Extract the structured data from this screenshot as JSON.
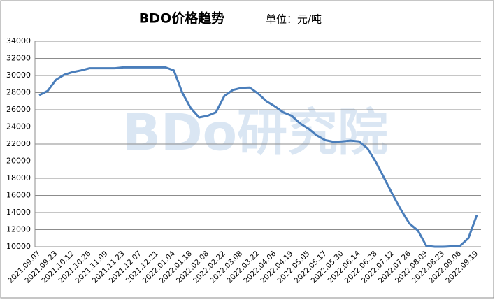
{
  "chart_data": {
    "type": "line",
    "title": "BDO价格趋势",
    "subtitle": "单位：元/吨",
    "watermark": "BDo研究院",
    "categories": [
      "2021.09.07",
      null,
      "2021.09.23",
      null,
      "2021.10.12",
      null,
      "2021.10.26",
      null,
      "2021.11.09",
      null,
      "2021.11.23",
      null,
      "2021.12.07",
      null,
      "2021.12.21",
      null,
      "2022.01.04",
      null,
      "2022.01.18",
      null,
      "2022.02.08",
      null,
      "2022.02.22",
      null,
      "2022.03.08",
      null,
      "2022.03.22",
      null,
      "2022.04.06",
      null,
      "2022.04.19",
      null,
      "2022.05.05",
      null,
      "2022.05.17",
      null,
      "2022.05.30",
      null,
      "2022.06.14",
      null,
      "2022.06.28",
      null,
      "2022.07.12",
      null,
      "2022.07.26",
      null,
      "2022.08.09",
      null,
      "2022.08.23",
      null,
      "2022.09.06",
      null,
      "2022.09.19"
    ],
    "series": [
      {
        "color": "#4a7ebb",
        "values": [
          27700,
          28200,
          29500,
          30100,
          30400,
          30600,
          30850,
          30850,
          30850,
          30850,
          30950,
          30950,
          30950,
          30950,
          30950,
          30950,
          30600,
          28000,
          26200,
          25100,
          25300,
          25700,
          27600,
          28300,
          28550,
          28600,
          27900,
          27000,
          26400,
          25700,
          25300,
          24400,
          23800,
          23000,
          22450,
          22250,
          22300,
          22400,
          22300,
          21500,
          19900,
          18000,
          16100,
          14300,
          12700,
          11900,
          10100,
          10000,
          10000,
          10050,
          10100,
          11000,
          13700
        ]
      }
    ],
    "ylim": [
      10000,
      34000
    ],
    "yticks": [
      10000,
      12000,
      14000,
      16000,
      18000,
      20000,
      22000,
      24000,
      26000,
      28000,
      30000,
      32000,
      34000
    ],
    "grid": true
  }
}
